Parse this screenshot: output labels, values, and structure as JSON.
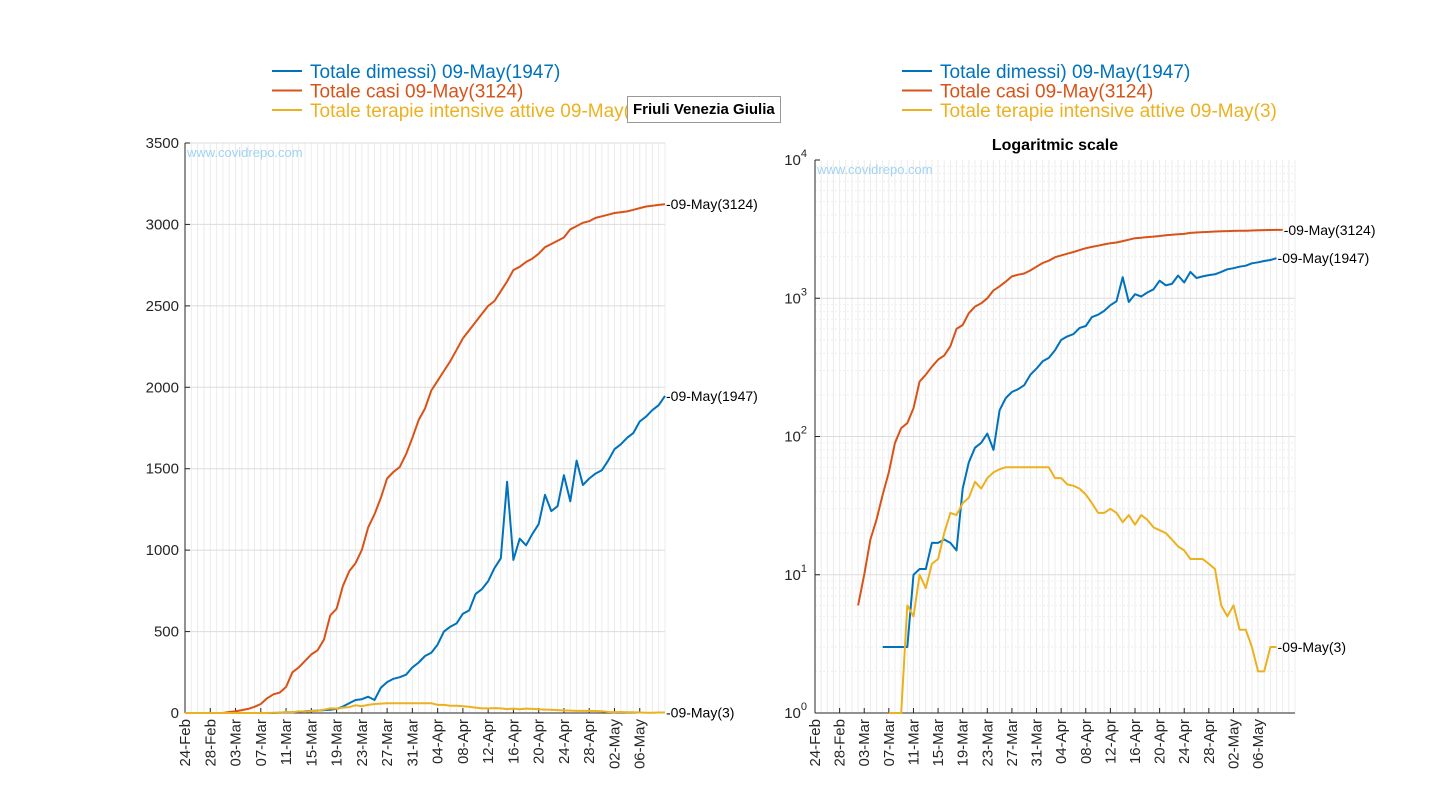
{
  "suptitle": "Friuli Venezia Giulia",
  "watermark": "www.covidrepo.com",
  "legend": [
    {
      "label": "Totale dimessi) 09-May(1947)",
      "color": "#0072BD"
    },
    {
      "label": "Totale casi 09-May(3124)",
      "color": "#D95319"
    },
    {
      "label": "Totale terapie intensive attive 09-May(3)",
      "color": "#EDB120"
    }
  ],
  "chart_data": [
    {
      "type": "line",
      "title": "",
      "yscale": "linear",
      "ylim": [
        0,
        3500
      ],
      "yticks": [
        "0",
        "500",
        "1000",
        "1500",
        "2000",
        "2500",
        "3000",
        "3500"
      ],
      "xlim": [
        "2020-02-24",
        "2020-05-10"
      ],
      "xticklabels": [
        "24-Feb",
        "28-Feb",
        "03-Mar",
        "07-Mar",
        "11-Mar",
        "15-Mar",
        "19-Mar",
        "23-Mar",
        "27-Mar",
        "31-Mar",
        "04-Apr",
        "08-Apr",
        "12-Apr",
        "16-Apr",
        "20-Apr",
        "24-Apr",
        "28-Apr",
        "02-May",
        "06-May"
      ],
      "grid": true,
      "end_labels": [
        "09-May(3124)",
        "09-May(1947)",
        "09-May(3)"
      ],
      "series": [
        {
          "name": "Totale dimessi) 09-May(1947)",
          "color": "#0072BD",
          "x_start": "2020-02-24",
          "values": [
            0,
            0,
            0,
            0,
            0,
            0,
            0,
            0,
            0,
            0,
            0,
            0,
            0,
            0,
            0,
            1,
            3,
            5,
            8,
            10,
            13,
            15,
            18,
            20,
            25,
            40,
            60,
            80,
            85,
            100,
            80,
            155,
            190,
            210,
            220,
            235,
            280,
            310,
            350,
            370,
            420,
            500,
            530,
            550,
            610,
            630,
            730,
            760,
            810,
            890,
            950,
            1420,
            940,
            1070,
            1030,
            1100,
            1160,
            1340,
            1240,
            1270,
            1460,
            1300,
            1550,
            1400,
            1440,
            1470,
            1490,
            1550,
            1620,
            1650,
            1690,
            1720,
            1790,
            1820,
            1860,
            1890,
            1947
          ]
        },
        {
          "name": "Totale casi 09-May(3124)",
          "color": "#D95319",
          "x_start": "2020-02-24",
          "values": [
            0,
            0,
            0,
            0,
            0,
            0,
            0,
            6,
            10,
            18,
            25,
            38,
            55,
            90,
            115,
            125,
            160,
            250,
            280,
            320,
            360,
            385,
            450,
            600,
            640,
            780,
            870,
            920,
            1000,
            1140,
            1220,
            1320,
            1440,
            1480,
            1510,
            1590,
            1690,
            1800,
            1870,
            1980,
            2040,
            2100,
            2160,
            2230,
            2300,
            2350,
            2400,
            2450,
            2500,
            2530,
            2590,
            2650,
            2720,
            2740,
            2770,
            2790,
            2820,
            2860,
            2880,
            2900,
            2920,
            2970,
            2990,
            3010,
            3020,
            3040,
            3050,
            3060,
            3070,
            3075,
            3080,
            3090,
            3100,
            3110,
            3115,
            3120,
            3124
          ]
        },
        {
          "name": "Totale terapie intensive attive 09-May(3)",
          "color": "#EDB120",
          "x_start": "2020-02-24",
          "values": [
            0,
            0,
            0,
            0,
            0,
            0,
            0,
            0,
            0,
            0,
            0,
            0,
            0,
            0,
            1,
            1,
            6,
            5,
            10,
            8,
            12,
            13,
            20,
            28,
            27,
            33,
            36,
            47,
            42,
            50,
            55,
            58,
            60,
            60,
            60,
            60,
            60,
            60,
            60,
            60,
            50,
            50,
            45,
            44,
            42,
            38,
            33,
            28,
            28,
            30,
            28,
            24,
            27,
            23,
            27,
            25,
            22,
            21,
            20,
            18,
            16,
            15,
            13,
            13,
            13,
            12,
            11,
            6,
            5,
            6,
            4,
            4,
            3,
            2,
            2,
            3,
            3
          ]
        }
      ]
    },
    {
      "type": "line",
      "title": "Logaritmic scale",
      "yscale": "log",
      "ylim": [
        1,
        10000
      ],
      "yticks": [
        "10^0",
        "10^1",
        "10^2",
        "10^3",
        "10^4"
      ],
      "xlim": [
        "2020-02-24",
        "2020-05-12"
      ],
      "xticklabels": [
        "24-Feb",
        "28-Feb",
        "03-Mar",
        "07-Mar",
        "11-Mar",
        "15-Mar",
        "19-Mar",
        "23-Mar",
        "27-Mar",
        "31-Mar",
        "04-Apr",
        "08-Apr",
        "12-Apr",
        "16-Apr",
        "20-Apr",
        "24-Apr",
        "28-Apr",
        "02-May",
        "06-May"
      ],
      "grid": true,
      "end_labels": [
        "09-May(3124)",
        "09-May(1947)",
        "09-May(3)"
      ],
      "series": [
        {
          "name": "Totale dimessi) 09-May(1947)",
          "color": "#0072BD",
          "x_start": "2020-03-06",
          "values": [
            3,
            3,
            3,
            3,
            3,
            10,
            11,
            11,
            17,
            17,
            18,
            17,
            15,
            42,
            65,
            83,
            90,
            105,
            80,
            155,
            190,
            210,
            220,
            235,
            280,
            310,
            350,
            370,
            420,
            500,
            530,
            550,
            610,
            630,
            730,
            760,
            810,
            890,
            950,
            1420,
            940,
            1070,
            1030,
            1100,
            1160,
            1340,
            1240,
            1270,
            1460,
            1300,
            1550,
            1400,
            1440,
            1470,
            1490,
            1550,
            1620,
            1650,
            1690,
            1720,
            1790,
            1820,
            1860,
            1890,
            1947
          ]
        },
        {
          "name": "Totale casi 09-May(3124)",
          "color": "#D95319",
          "x_start": "2020-03-02",
          "values": [
            6,
            10,
            18,
            25,
            38,
            55,
            90,
            115,
            125,
            160,
            250,
            280,
            320,
            360,
            385,
            450,
            600,
            640,
            780,
            870,
            920,
            1000,
            1140,
            1220,
            1320,
            1440,
            1480,
            1510,
            1590,
            1690,
            1800,
            1870,
            1980,
            2040,
            2100,
            2160,
            2230,
            2300,
            2350,
            2400,
            2450,
            2500,
            2530,
            2590,
            2650,
            2720,
            2740,
            2770,
            2790,
            2820,
            2860,
            2880,
            2900,
            2920,
            2970,
            2990,
            3010,
            3020,
            3040,
            3050,
            3060,
            3070,
            3075,
            3080,
            3090,
            3100,
            3110,
            3115,
            3120,
            3124
          ]
        },
        {
          "name": "Totale terapie intensive attive 09-May(3)",
          "color": "#EDB120",
          "x_start": "2020-03-07",
          "values": [
            1,
            1,
            1,
            6,
            5,
            10,
            8,
            12,
            13,
            20,
            28,
            27,
            33,
            36,
            47,
            42,
            50,
            55,
            58,
            60,
            60,
            60,
            60,
            60,
            60,
            60,
            60,
            50,
            50,
            45,
            44,
            42,
            38,
            33,
            28,
            28,
            30,
            28,
            24,
            27,
            23,
            27,
            25,
            22,
            21,
            20,
            18,
            16,
            15,
            13,
            13,
            13,
            12,
            11,
            6,
            5,
            6,
            4,
            4,
            3,
            2,
            2,
            3,
            3
          ]
        }
      ]
    }
  ]
}
